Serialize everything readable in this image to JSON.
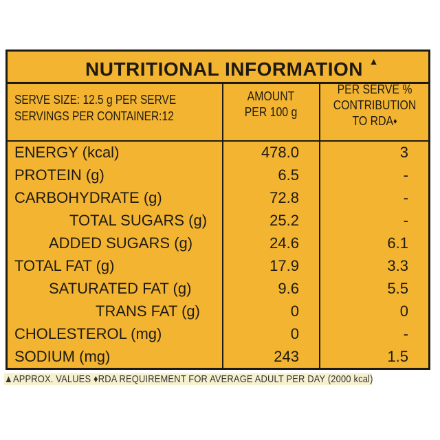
{
  "title": "NUTRITIONAL INFORMATION",
  "title_mark": "▲",
  "serve": {
    "size": "SERVE SIZE: 12.5 g PER SERVE",
    "servings": "SERVINGS PER CONTAINER:12"
  },
  "columns": {
    "amount_1": "AMOUNT",
    "amount_2": "PER 100 g",
    "rda_1": "PER SERVE %",
    "rda_2": "CONTRIBUTION",
    "rda_3": "TO RDA",
    "rda_mark": "♦"
  },
  "rows": [
    {
      "label": "ENERGY (kcal)",
      "amount": "478.0",
      "rda": "3"
    },
    {
      "label": "PROTEIN (g)",
      "amount": "6.5",
      "rda": "-"
    },
    {
      "label": "CARBOHYDRATE (g)",
      "amount": "72.8",
      "rda": "-"
    },
    {
      "label": "TOTAL SUGARS (g)",
      "amount": "25.2",
      "rda": "-"
    },
    {
      "label": "ADDED SUGARS (g)",
      "amount": "24.6",
      "rda": "6.1"
    },
    {
      "label": "TOTAL FAT (g)",
      "amount": "17.9",
      "rda": "3.3"
    },
    {
      "label": "SATURATED FAT (g)",
      "amount": "9.6",
      "rda": "5.5"
    },
    {
      "label": "TRANS FAT (g)",
      "amount": "0",
      "rda": "0"
    },
    {
      "label": "CHOLESTEROL (mg)",
      "amount": "0",
      "rda": "-"
    },
    {
      "label": "SODIUM (mg)",
      "amount": "243",
      "rda": "1.5"
    }
  ],
  "footnote": "▲APPROX. VALUES ♦RDA REQUIREMENT FOR AVERAGE ADULT PER DAY (2000 kcal)",
  "colors": {
    "panel": "#f3b431",
    "ink": "#1e1a12"
  }
}
